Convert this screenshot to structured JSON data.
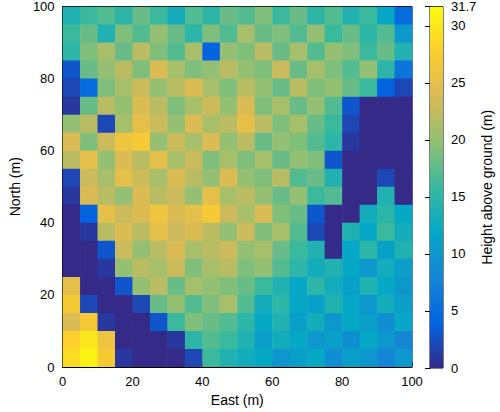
{
  "chart_data": {
    "type": "heatmap",
    "x_label": "East (m)",
    "y_label": "North (m)",
    "colorbar_label": "Height above ground (m)",
    "xlim": [
      0,
      100
    ],
    "xticks": [
      0,
      20,
      40,
      60,
      80,
      100
    ],
    "ylim": [
      0,
      100
    ],
    "yticks": [
      0,
      20,
      40,
      60,
      80,
      100
    ],
    "colorbar_lim": [
      0,
      31.7
    ],
    "colorbar_ticks": [
      0,
      5,
      10,
      15,
      20,
      25,
      30
    ],
    "x": [
      2.5,
      7.5,
      12.5,
      17.5,
      22.5,
      27.5,
      32.5,
      37.5,
      42.5,
      47.5,
      52.5,
      57.5,
      62.5,
      67.5,
      72.5,
      77.5,
      82.5,
      87.5,
      92.5,
      97.5
    ],
    "y": [
      97.5,
      92.5,
      87.5,
      82.5,
      77.5,
      72.5,
      67.5,
      62.5,
      57.5,
      52.5,
      47.5,
      42.5,
      37.5,
      32.5,
      27.5,
      22.5,
      17.5,
      12.5,
      7.5,
      2.5
    ],
    "cells": [
      [
        14,
        16,
        17,
        15,
        18,
        16,
        13,
        17,
        15,
        18,
        17,
        19,
        16,
        18,
        15,
        17,
        14,
        16,
        12,
        5
      ],
      [
        16,
        18,
        14,
        19,
        17,
        20,
        18,
        15,
        19,
        17,
        21,
        18,
        19,
        17,
        20,
        16,
        18,
        15,
        17,
        10
      ],
      [
        15,
        19,
        21,
        18,
        22,
        19,
        17,
        21,
        4,
        20,
        19,
        22,
        18,
        21,
        17,
        20,
        19,
        16,
        18,
        14
      ],
      [
        3,
        18,
        20,
        22,
        19,
        24,
        21,
        19,
        20,
        22,
        20,
        19,
        23,
        18,
        21,
        19,
        17,
        20,
        15,
        6
      ],
      [
        2,
        5,
        19,
        21,
        23,
        20,
        22,
        24,
        21,
        19,
        22,
        20,
        18,
        22,
        19,
        20,
        18,
        16,
        4,
        2
      ],
      [
        1,
        18,
        22,
        20,
        24,
        22,
        19,
        21,
        23,
        20,
        24,
        19,
        21,
        18,
        20,
        17,
        3,
        0,
        0,
        0
      ],
      [
        20,
        22,
        2,
        21,
        25,
        23,
        20,
        24,
        21,
        22,
        25,
        22,
        19,
        21,
        18,
        16,
        2,
        0,
        0,
        0
      ],
      [
        24,
        19,
        23,
        26,
        27,
        20,
        23,
        21,
        24,
        20,
        22,
        18,
        20,
        19,
        17,
        15,
        1,
        0,
        0,
        0
      ],
      [
        22,
        25,
        20,
        24,
        22,
        25,
        21,
        23,
        19,
        21,
        19,
        21,
        18,
        20,
        19,
        3,
        0,
        0,
        0,
        0
      ],
      [
        2,
        23,
        21,
        25,
        23,
        21,
        24,
        22,
        20,
        24,
        20,
        19,
        22,
        17,
        18,
        14,
        0,
        0,
        2,
        0
      ],
      [
        1,
        24,
        22,
        20,
        24,
        22,
        23,
        20,
        25,
        21,
        22,
        20,
        18,
        20,
        16,
        17,
        0,
        0,
        14,
        0
      ],
      [
        0,
        4,
        25,
        23,
        24,
        26,
        24,
        25,
        27,
        23,
        21,
        24,
        19,
        18,
        3,
        0,
        0,
        13,
        15,
        12
      ],
      [
        0,
        1,
        22,
        24,
        22,
        25,
        23,
        24,
        22,
        20,
        23,
        19,
        21,
        17,
        2,
        0,
        14,
        12,
        16,
        13
      ],
      [
        0,
        0,
        3,
        23,
        20,
        22,
        24,
        21,
        22,
        23,
        20,
        21,
        18,
        16,
        14,
        0,
        12,
        15,
        11,
        14
      ],
      [
        0,
        0,
        1,
        20,
        22,
        21,
        23,
        19,
        21,
        22,
        19,
        20,
        17,
        15,
        13,
        14,
        12,
        10,
        13,
        11
      ],
      [
        25,
        0,
        0,
        3,
        20,
        22,
        18,
        21,
        20,
        19,
        18,
        16,
        14,
        12,
        15,
        13,
        11,
        14,
        12,
        10
      ],
      [
        27,
        2,
        0,
        0,
        2,
        18,
        20,
        17,
        19,
        21,
        17,
        13,
        15,
        12,
        11,
        14,
        12,
        10,
        13,
        11
      ],
      [
        24,
        27,
        1,
        0,
        0,
        3,
        16,
        19,
        18,
        17,
        15,
        12,
        14,
        11,
        13,
        10,
        12,
        11,
        9,
        12
      ],
      [
        28,
        30,
        26,
        0,
        0,
        0,
        1,
        15,
        17,
        16,
        14,
        11,
        13,
        12,
        10,
        11,
        9,
        12,
        10,
        8
      ],
      [
        29,
        31,
        27,
        1,
        0,
        0,
        0,
        2,
        16,
        14,
        13,
        12,
        10,
        11,
        12,
        9,
        11,
        10,
        8,
        10
      ]
    ]
  }
}
